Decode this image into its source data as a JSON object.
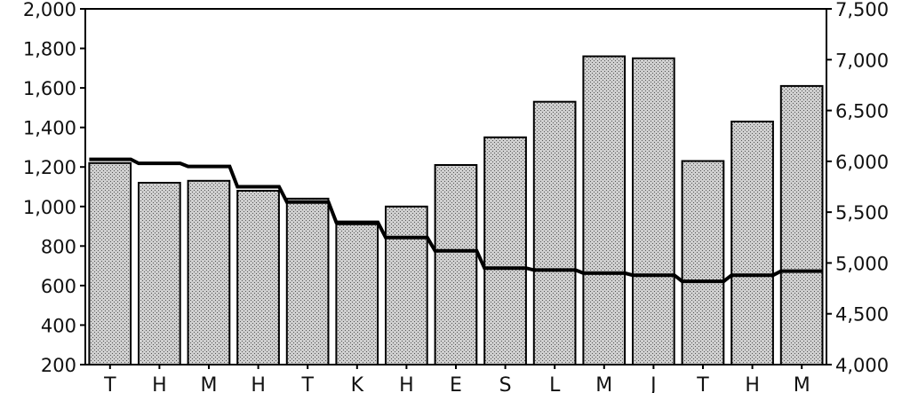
{
  "chart_data": {
    "type": "bar",
    "categories": [
      "T",
      "H",
      "M",
      "H",
      "T",
      "K",
      "H",
      "E",
      "S",
      "L",
      "M",
      "J",
      "T",
      "H",
      "M"
    ],
    "series": [
      {
        "axis": "left",
        "type": "bar",
        "values": [
          1220,
          1120,
          1130,
          1080,
          1040,
          910,
          1000,
          1210,
          1350,
          1530,
          1760,
          1750,
          1230,
          1430,
          1610
        ]
      },
      {
        "axis": "right",
        "type": "step-line",
        "values": [
          6020,
          5980,
          5950,
          5750,
          5600,
          5400,
          5250,
          5120,
          4950,
          4930,
          4900,
          4880,
          4820,
          4880,
          4920
        ]
      }
    ],
    "y_left": {
      "min": 200,
      "max": 2000,
      "ticks": [
        "200",
        "400",
        "600",
        "800",
        "1,000",
        "1,200",
        "1,400",
        "1,600",
        "1,800",
        "2,000"
      ]
    },
    "y_right": {
      "min": 4000,
      "max": 7500,
      "ticks": [
        "4,000",
        "4,500",
        "5,000",
        "5,500",
        "6,000",
        "6,500",
        "7,000",
        "7,500"
      ]
    },
    "grid": false,
    "legend": "none",
    "colors": {
      "bar_fill": "#c4c4c4",
      "bar_stroke": "#000000",
      "line": "#000000"
    }
  }
}
